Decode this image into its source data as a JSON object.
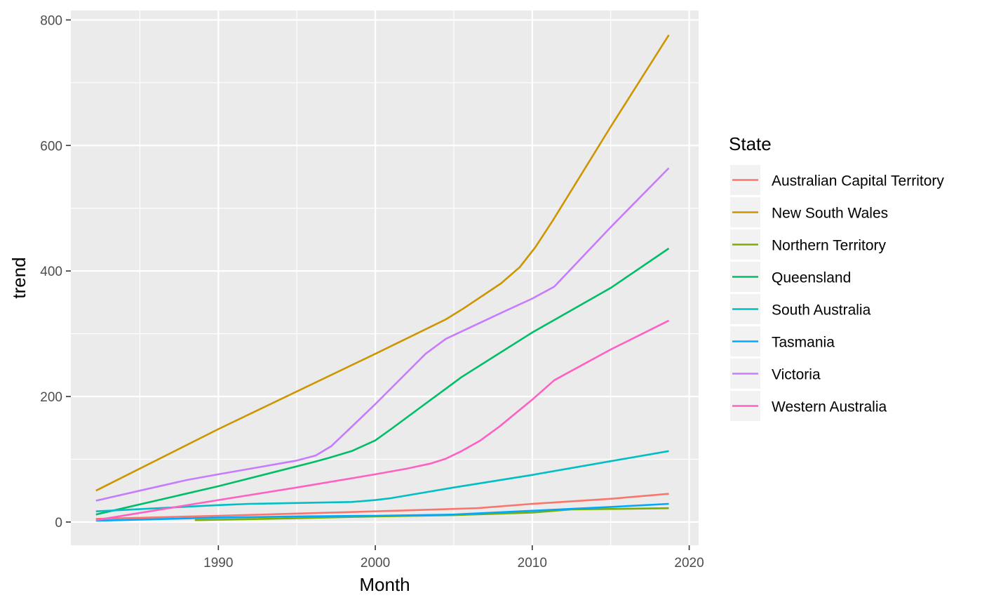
{
  "chart_data": {
    "type": "line",
    "xlabel": "Month",
    "ylabel": "trend",
    "xlim": [
      1980.6,
      2020.6
    ],
    "ylim": [
      -37,
      815
    ],
    "x_ticks": [
      1990,
      2000,
      2010,
      2020
    ],
    "y_ticks": [
      0,
      200,
      400,
      600,
      800
    ],
    "grid": true,
    "legend": {
      "title": "State",
      "position": "right"
    },
    "series": [
      {
        "name": "Australian Capital Territory",
        "color": "#F8766D",
        "points": [
          [
            1982.2,
            5
          ],
          [
            1990,
            10
          ],
          [
            2000,
            17
          ],
          [
            2006.5,
            22
          ],
          [
            2010,
            29
          ],
          [
            2015,
            37
          ],
          [
            2018.7,
            45
          ]
        ]
      },
      {
        "name": "New South Wales",
        "color": "#CD9600",
        "points": [
          [
            1982.2,
            50
          ],
          [
            1990,
            148
          ],
          [
            2000,
            268
          ],
          [
            2004.5,
            323
          ],
          [
            2005.6,
            340
          ],
          [
            2008,
            380
          ],
          [
            2009.2,
            406
          ],
          [
            2010.2,
            438
          ],
          [
            2011.3,
            480
          ],
          [
            2015,
            630
          ],
          [
            2018.7,
            776
          ]
        ]
      },
      {
        "name": "Northern Territory",
        "color": "#7CAE00",
        "points": [
          [
            1988.5,
            3
          ],
          [
            1995,
            6
          ],
          [
            2000,
            9
          ],
          [
            2005,
            11
          ],
          [
            2010,
            15
          ],
          [
            2012.5,
            20
          ],
          [
            2018.7,
            22
          ]
        ]
      },
      {
        "name": "Queensland",
        "color": "#00BE67",
        "points": [
          [
            1982.2,
            12
          ],
          [
            1990,
            57
          ],
          [
            1996,
            95
          ],
          [
            1997,
            102
          ],
          [
            1998.5,
            113
          ],
          [
            2000,
            130
          ],
          [
            2001,
            148
          ],
          [
            2003,
            185
          ],
          [
            2005.5,
            231
          ],
          [
            2010,
            302
          ],
          [
            2015,
            373
          ],
          [
            2018.7,
            436
          ]
        ]
      },
      {
        "name": "South Australia",
        "color": "#00BFC4",
        "points": [
          [
            1982.2,
            17
          ],
          [
            1990,
            27
          ],
          [
            1992,
            29
          ],
          [
            1998.5,
            32
          ],
          [
            2000,
            35
          ],
          [
            2001,
            38
          ],
          [
            2005,
            55
          ],
          [
            2010,
            75
          ],
          [
            2015,
            97
          ],
          [
            2018.7,
            113
          ]
        ]
      },
      {
        "name": "Tasmania",
        "color": "#00A9FF",
        "points": [
          [
            1982.2,
            2
          ],
          [
            1990,
            7
          ],
          [
            1995,
            9
          ],
          [
            2000,
            10
          ],
          [
            2005,
            12
          ],
          [
            2010,
            18
          ],
          [
            2015,
            24
          ],
          [
            2018.7,
            29
          ]
        ]
      },
      {
        "name": "Victoria",
        "color": "#C77CFF",
        "points": [
          [
            1982.2,
            34
          ],
          [
            1985,
            50
          ],
          [
            1988,
            67
          ],
          [
            1990,
            76
          ],
          [
            1995,
            98
          ],
          [
            1996.2,
            106
          ],
          [
            1997.2,
            121
          ],
          [
            1998.5,
            152
          ],
          [
            2000,
            188
          ],
          [
            2003.2,
            268
          ],
          [
            2004.5,
            292
          ],
          [
            2008,
            333
          ],
          [
            2010,
            356
          ],
          [
            2011.4,
            375
          ],
          [
            2015,
            470
          ],
          [
            2018.7,
            564
          ]
        ]
      },
      {
        "name": "Western Australia",
        "color": "#FF61C3",
        "points": [
          [
            1982.2,
            3
          ],
          [
            1990,
            35
          ],
          [
            1995,
            55
          ],
          [
            2000,
            76
          ],
          [
            2002,
            85
          ],
          [
            2003.5,
            93
          ],
          [
            2004.5,
            101
          ],
          [
            2005.5,
            113
          ],
          [
            2006.7,
            130
          ],
          [
            2007.9,
            152
          ],
          [
            2010,
            195
          ],
          [
            2011.4,
            226
          ],
          [
            2015,
            275
          ],
          [
            2018.7,
            321
          ]
        ]
      }
    ]
  }
}
